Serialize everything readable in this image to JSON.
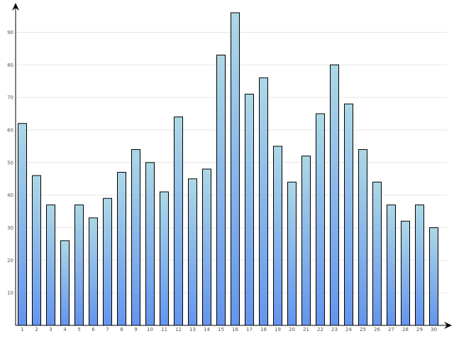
{
  "chart_data": {
    "type": "bar",
    "categories": [
      "1",
      "2",
      "3",
      "4",
      "5",
      "6",
      "7",
      "8",
      "9",
      "10",
      "11",
      "12",
      "13",
      "14",
      "15",
      "16",
      "17",
      "18",
      "19",
      "20",
      "21",
      "22",
      "23",
      "24",
      "25",
      "26",
      "27",
      "28",
      "29",
      "30"
    ],
    "values": [
      62,
      46,
      37,
      26,
      37,
      33,
      39,
      47,
      54,
      50,
      41,
      64,
      45,
      48,
      83,
      96,
      71,
      76,
      55,
      44,
      52,
      65,
      80,
      68,
      54,
      44,
      37,
      32,
      37,
      30
    ],
    "ylim": [
      0,
      100
    ],
    "yticks": [
      10,
      20,
      30,
      40,
      50,
      60,
      70,
      80,
      90
    ],
    "grid": true,
    "colors": {
      "bar_top": "#add8e6",
      "bar_bottom": "#6495ed",
      "grid": "#e6e6e6",
      "axis": "#000000"
    }
  }
}
